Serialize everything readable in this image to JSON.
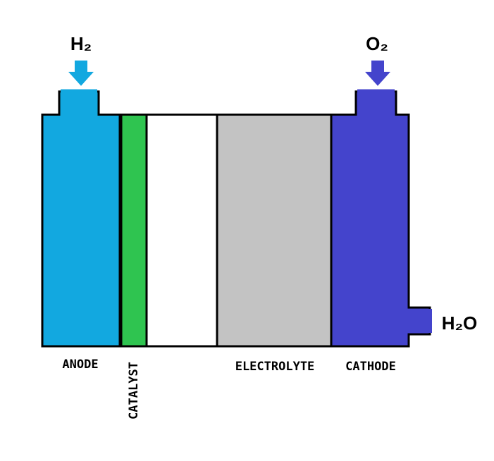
{
  "inputs": {
    "hydrogen": "H₂",
    "oxygen": "O₂"
  },
  "output": "H₂O",
  "layers": {
    "anode": "ANODE",
    "catalyst": "CATALYST",
    "electrolyte": "ELECTROLYTE",
    "cathode": "CATHODE"
  }
}
